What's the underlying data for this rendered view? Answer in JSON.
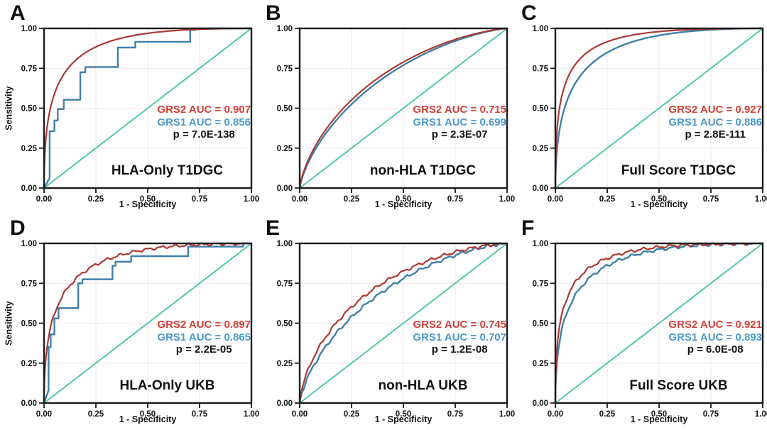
{
  "figure": {
    "layout": "2 rows x 3 columns of ROC panels"
  },
  "colors": {
    "grs2_curve": "#ab3a34",
    "grs1_curve": "#4080a8",
    "grs2_text": "#d2423b",
    "grs1_text": "#4c99c8",
    "p_text": "#111111",
    "diagonal": "#53c6ae",
    "grid": "#f2eaea",
    "frame": "#1a1a1a",
    "tick_text": "#111111"
  },
  "chart_data": [
    {
      "type": "line",
      "panel": "A",
      "title": "HLA-Only T1DGC",
      "xlabel": "1 - Specificity",
      "ylabel": "Sensitivity",
      "xlim": [
        0,
        1
      ],
      "ylim": [
        0,
        1
      ],
      "xticks": [
        "0.00",
        "0.25",
        "0.50",
        "0.75",
        "1.00"
      ],
      "yticks": [
        "0.00",
        "0.25",
        "0.50",
        "0.75",
        "1.00"
      ],
      "grid": true,
      "legend_position": "annotation inside plot, right-center",
      "series": [
        {
          "name": "GRS1",
          "auc": 0.856,
          "style": "steps",
          "points": [
            [
              0,
              0
            ],
            [
              0.027,
              0.064
            ],
            [
              0.027,
              0.356
            ],
            [
              0.05,
              0.356
            ],
            [
              0.05,
              0.423
            ],
            [
              0.066,
              0.423
            ],
            [
              0.066,
              0.495
            ],
            [
              0.095,
              0.495
            ],
            [
              0.095,
              0.553
            ],
            [
              0.175,
              0.553
            ],
            [
              0.175,
              0.725
            ],
            [
              0.199,
              0.725
            ],
            [
              0.199,
              0.758
            ],
            [
              0.356,
              0.758
            ],
            [
              0.356,
              0.88
            ],
            [
              0.44,
              0.88
            ],
            [
              0.44,
              0.916
            ],
            [
              0.705,
              0.916
            ],
            [
              0.705,
              0.99
            ],
            [
              0.73,
              0.99
            ],
            [
              0.73,
              1
            ],
            [
              1,
              1
            ]
          ]
        },
        {
          "name": "GRS2",
          "auc": 0.907,
          "style": "smooth",
          "texture": "clean"
        },
        {
          "name": "chance",
          "style": "diagonal"
        }
      ],
      "annotation": {
        "grs2": "GRS2 AUC = 0.907",
        "grs1": "GRS1 AUC = 0.856",
        "p": "p = 7.0E-138"
      }
    },
    {
      "type": "line",
      "panel": "B",
      "title": "non-HLA T1DGC",
      "xlabel": "1 - Specificity",
      "ylabel": "",
      "xlim": [
        0,
        1
      ],
      "ylim": [
        0,
        1
      ],
      "xticks": [
        "0.00",
        "0.25",
        "0.50",
        "0.75",
        "1.00"
      ],
      "yticks": [
        "0.00",
        "0.25",
        "0.50",
        "0.75",
        "1.00"
      ],
      "grid": true,
      "legend_position": "annotation inside plot, right-center",
      "series": [
        {
          "name": "GRS1",
          "auc": 0.699,
          "style": "smooth",
          "texture": "clean"
        },
        {
          "name": "GRS2",
          "auc": 0.715,
          "style": "smooth",
          "texture": "clean"
        },
        {
          "name": "chance",
          "style": "diagonal"
        }
      ],
      "annotation": {
        "grs2": "GRS2 AUC = 0.715",
        "grs1": "GRS1 AUC = 0.699",
        "p": "p = 2.3E-07"
      }
    },
    {
      "type": "line",
      "panel": "C",
      "title": "Full Score T1DGC",
      "xlabel": "1 - Specificity",
      "ylabel": "",
      "xlim": [
        0,
        1
      ],
      "ylim": [
        0,
        1
      ],
      "xticks": [
        "0.00",
        "0.25",
        "0.50",
        "0.75",
        "1.00"
      ],
      "yticks": [
        "0.00",
        "0.25",
        "0.50",
        "0.75",
        "1.00"
      ],
      "grid": true,
      "legend_position": "annotation inside plot, right-center",
      "series": [
        {
          "name": "GRS1",
          "auc": 0.886,
          "style": "smooth",
          "texture": "clean"
        },
        {
          "name": "GRS2",
          "auc": 0.927,
          "style": "smooth",
          "texture": "clean"
        },
        {
          "name": "chance",
          "style": "diagonal"
        }
      ],
      "annotation": {
        "grs2": "GRS2 AUC = 0.927",
        "grs1": "GRS1 AUC = 0.886",
        "p": "p = 2.8E-111"
      }
    },
    {
      "type": "line",
      "panel": "D",
      "title": "HLA-Only UKB",
      "xlabel": "1 - Specificity",
      "ylabel": "Sensitivity",
      "xlim": [
        0,
        1
      ],
      "ylim": [
        0,
        1
      ],
      "xticks": [
        "0.00",
        "0.25",
        "0.50",
        "0.75",
        "1.00"
      ],
      "yticks": [
        "0.00",
        "0.25",
        "0.50",
        "0.75",
        "1.00"
      ],
      "grid": true,
      "legend_position": "annotation inside plot, right-center",
      "series": [
        {
          "name": "GRS1",
          "auc": 0.865,
          "style": "steps",
          "points": [
            [
              0,
              0
            ],
            [
              0.022,
              0.08
            ],
            [
              0.022,
              0.35
            ],
            [
              0.032,
              0.35
            ],
            [
              0.032,
              0.43
            ],
            [
              0.05,
              0.43
            ],
            [
              0.05,
              0.53
            ],
            [
              0.07,
              0.53
            ],
            [
              0.07,
              0.595
            ],
            [
              0.165,
              0.595
            ],
            [
              0.165,
              0.75
            ],
            [
              0.185,
              0.75
            ],
            [
              0.185,
              0.775
            ],
            [
              0.33,
              0.775
            ],
            [
              0.33,
              0.86
            ],
            [
              0.345,
              0.86
            ],
            [
              0.345,
              0.885
            ],
            [
              0.42,
              0.885
            ],
            [
              0.42,
              0.92
            ],
            [
              0.695,
              0.92
            ],
            [
              0.695,
              0.98
            ],
            [
              0.96,
              0.98
            ],
            [
              0.96,
              1
            ],
            [
              1,
              1
            ]
          ]
        },
        {
          "name": "GRS2",
          "auc": 0.897,
          "style": "smooth",
          "texture": "rough"
        },
        {
          "name": "chance",
          "style": "diagonal"
        }
      ],
      "annotation": {
        "grs2": "GRS2 AUC = 0.897",
        "grs1": "GRS1 AUC = 0.865",
        "p": "p = 2.2E-05"
      }
    },
    {
      "type": "line",
      "panel": "E",
      "title": "non-HLA UKB",
      "xlabel": "1 - Specificity",
      "ylabel": "",
      "xlim": [
        0,
        1
      ],
      "ylim": [
        0,
        1
      ],
      "xticks": [
        "0.00",
        "0.25",
        "0.50",
        "0.75",
        "1.00"
      ],
      "yticks": [
        "0.00",
        "0.25",
        "0.50",
        "0.75",
        "1.00"
      ],
      "grid": true,
      "legend_position": "annotation inside plot, right-center",
      "series": [
        {
          "name": "GRS1",
          "auc": 0.707,
          "style": "smooth",
          "texture": "rough"
        },
        {
          "name": "GRS2",
          "auc": 0.745,
          "style": "smooth",
          "texture": "rough"
        },
        {
          "name": "chance",
          "style": "diagonal"
        }
      ],
      "annotation": {
        "grs2": "GRS2 AUC = 0.745",
        "grs1": "GRS1 AUC = 0.707",
        "p": "p = 1.2E-08"
      }
    },
    {
      "type": "line",
      "panel": "F",
      "title": "Full Score UKB",
      "xlabel": "1 - Specificity",
      "ylabel": "",
      "xlim": [
        0,
        1
      ],
      "ylim": [
        0,
        1
      ],
      "xticks": [
        "0.00",
        "0.25",
        "0.50",
        "0.75",
        "1.00"
      ],
      "yticks": [
        "0.00",
        "0.25",
        "0.50",
        "0.75",
        "1.00"
      ],
      "grid": true,
      "legend_position": "annotation inside plot, right-center",
      "series": [
        {
          "name": "GRS1",
          "auc": 0.893,
          "style": "smooth",
          "texture": "rough"
        },
        {
          "name": "GRS2",
          "auc": 0.921,
          "style": "smooth",
          "texture": "rough"
        },
        {
          "name": "chance",
          "style": "diagonal"
        }
      ],
      "annotation": {
        "grs2": "GRS2 AUC = 0.921",
        "grs1": "GRS1 AUC = 0.893",
        "p": "p = 6.0E-08"
      }
    }
  ]
}
